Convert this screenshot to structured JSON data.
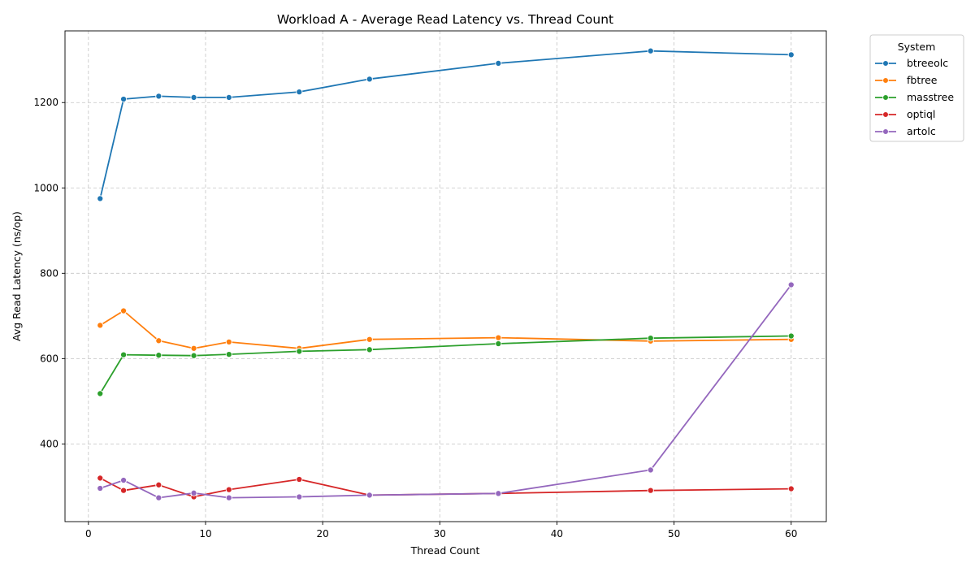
{
  "chart_data": {
    "type": "line",
    "title": "Workload A - Average Read Latency vs. Thread Count",
    "xlabel": "Thread Count",
    "ylabel": "Avg Read Latency (ns/op)",
    "x": [
      1,
      3,
      6,
      9,
      12,
      18,
      24,
      35,
      48,
      60
    ],
    "xlim": [
      -2,
      63
    ],
    "ylim": [
      218,
      1368
    ],
    "xticks": [
      0,
      10,
      20,
      30,
      40,
      50,
      60
    ],
    "yticks": [
      400,
      600,
      800,
      1000,
      1200
    ],
    "grid": true,
    "legend": {
      "title": "System",
      "placement": "outside-top-right"
    },
    "series": [
      {
        "name": "btreeolc",
        "color": "#1f77b4",
        "values": [
          975,
          1208,
          1215,
          1212,
          1212,
          1225,
          1255,
          1292,
          1321,
          1312
        ]
      },
      {
        "name": "fbtree",
        "color": "#ff7f0e",
        "values": [
          678,
          712,
          642,
          624,
          639,
          624,
          645,
          649,
          641,
          645
        ]
      },
      {
        "name": "masstree",
        "color": "#2ca02c",
        "values": [
          518,
          609,
          608,
          607,
          610,
          617,
          621,
          635,
          648,
          653
        ]
      },
      {
        "name": "optiql",
        "color": "#d62728",
        "values": [
          320,
          291,
          304,
          276,
          293,
          317,
          280,
          284,
          291,
          295
        ]
      },
      {
        "name": "artolc",
        "color": "#9467bd",
        "values": [
          296,
          315,
          274,
          285,
          274,
          276,
          280,
          284,
          339,
          773
        ]
      }
    ]
  }
}
